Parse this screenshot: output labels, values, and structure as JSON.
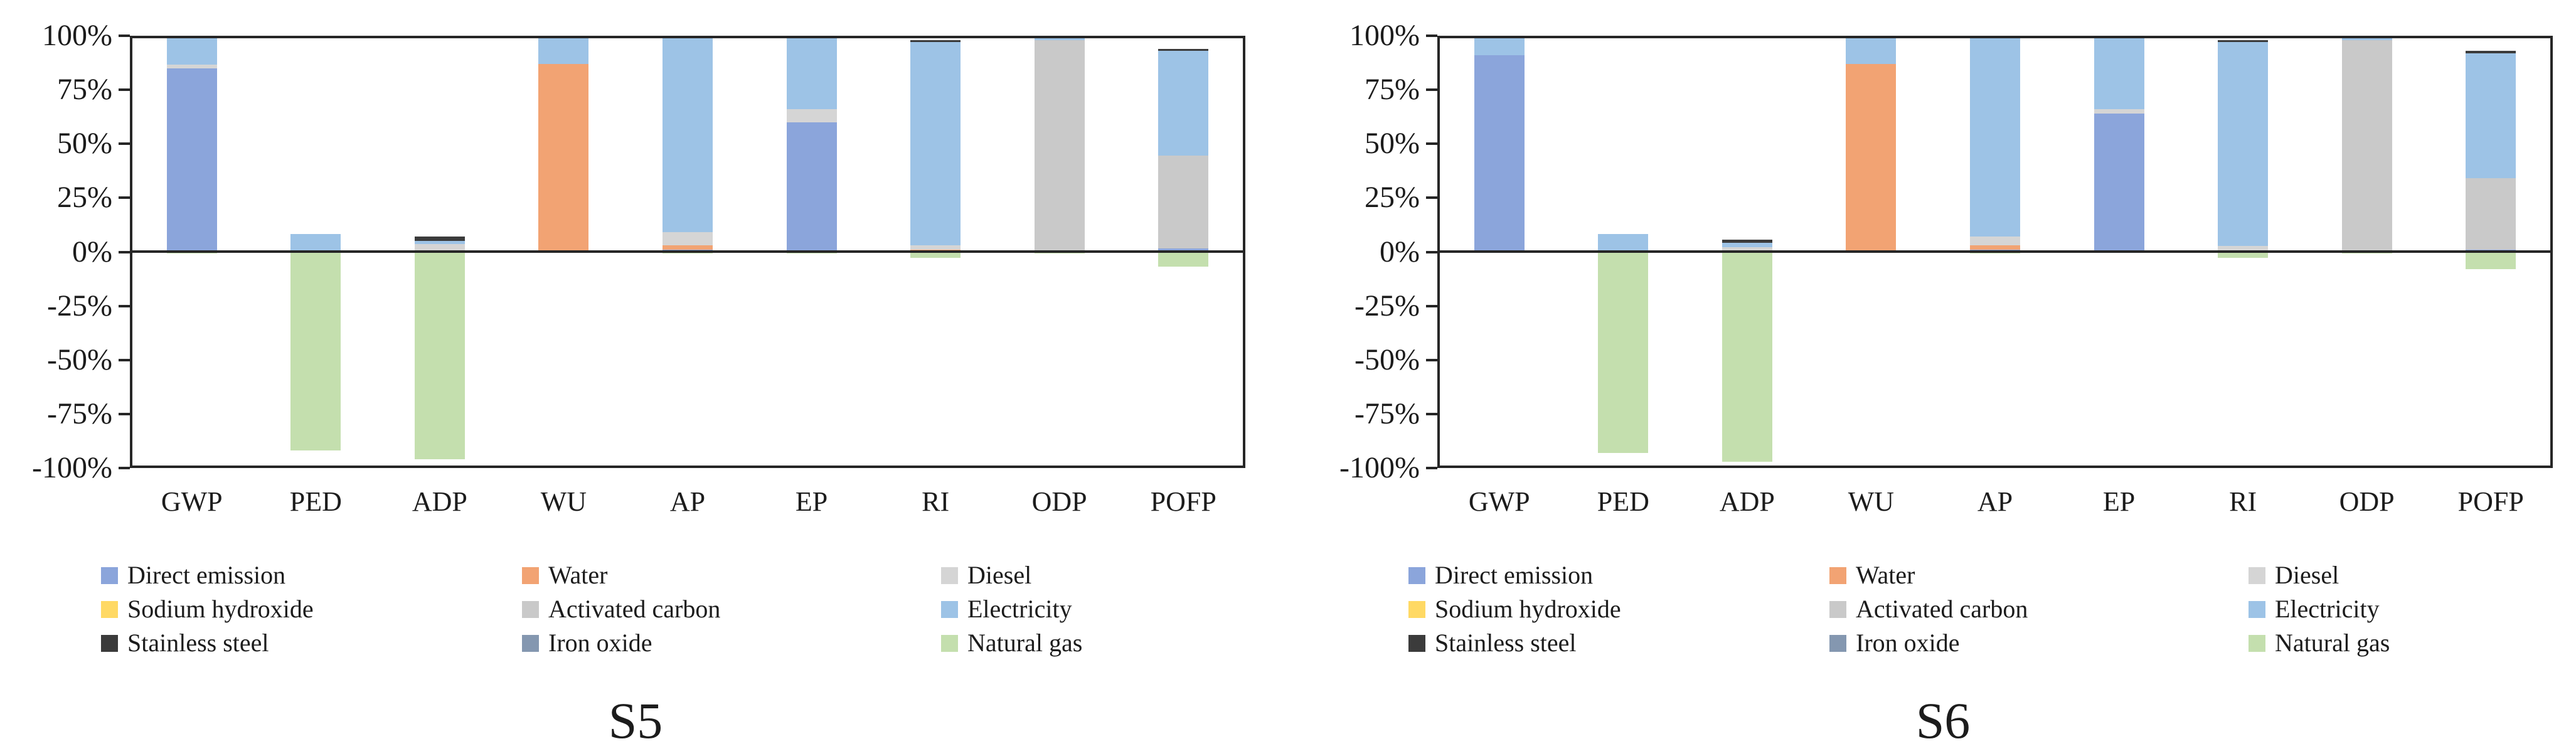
{
  "colors": {
    "frame": "#262626",
    "text": "#1c1c1c",
    "direct_emission": "#8BA5DB",
    "water": "#F2A373",
    "diesel": "#D5D5D5",
    "sodium_hydroxide": "#FFD964",
    "activated_carbon": "#C9C9C9",
    "electricity": "#9DC3E6",
    "stainless_steel": "#3B3B3B",
    "iron_oxide": "#8497B0",
    "natural_gas": "#C4DFAE"
  },
  "chart_data": [
    {
      "type": "bar",
      "stacked": true,
      "title": "S5",
      "categories": [
        "GWP",
        "PED",
        "ADP",
        "WU",
        "AP",
        "EP",
        "RI",
        "ODP",
        "POFP"
      ],
      "ylim": [
        -100,
        100
      ],
      "y_tick_labels": [
        "100%",
        "75%",
        "50%",
        "25%",
        "0%",
        "-25%",
        "-50%",
        "-75%",
        "-100%"
      ],
      "grid": false,
      "legend_position": "bottom",
      "series": [
        {
          "name": "Direct emission",
          "color_key": "direct_emission",
          "values": [
            85,
            0,
            0,
            0,
            1,
            60,
            0,
            0,
            1.5
          ]
        },
        {
          "name": "Water",
          "color_key": "water",
          "values": [
            0,
            0,
            0,
            87,
            2,
            0,
            1,
            0,
            0
          ]
        },
        {
          "name": "Diesel",
          "color_key": "diesel",
          "values": [
            1.5,
            0,
            3.5,
            0,
            6,
            6,
            2,
            0,
            0
          ]
        },
        {
          "name": "Sodium hydroxide",
          "color_key": "sodium_hydroxide",
          "values": [
            0,
            0,
            0,
            0,
            0,
            0,
            0,
            0,
            0
          ]
        },
        {
          "name": "Activated carbon",
          "color_key": "activated_carbon",
          "values": [
            0,
            0,
            0,
            0,
            0,
            0,
            0,
            98,
            43
          ]
        },
        {
          "name": "Electricity",
          "color_key": "electricity",
          "values": [
            12.5,
            8,
            1.5,
            13,
            90,
            34,
            94,
            2,
            48.5
          ]
        },
        {
          "name": "Stainless steel",
          "color_key": "stainless_steel",
          "values": [
            1,
            0,
            2,
            0,
            1,
            0,
            1,
            0,
            1
          ]
        },
        {
          "name": "Iron oxide",
          "color_key": "iron_oxide",
          "values": [
            0,
            0,
            0,
            0,
            0,
            0,
            0,
            0,
            0
          ]
        },
        {
          "name": "Natural gas",
          "color_key": "natural_gas",
          "values": [
            -1,
            -92,
            -96,
            0,
            -1,
            -1,
            -3,
            -1,
            -7
          ]
        }
      ],
      "legend_columns": [
        [
          "Direct emission",
          "Sodium hydroxide",
          "Stainless steel"
        ],
        [
          "Water",
          "Activated carbon",
          "Iron oxide"
        ],
        [
          "Diesel",
          "Electricity",
          "Natural gas"
        ]
      ]
    },
    {
      "type": "bar",
      "stacked": true,
      "title": "S6",
      "categories": [
        "GWP",
        "PED",
        "ADP",
        "WU",
        "AP",
        "EP",
        "RI",
        "ODP",
        "POFP"
      ],
      "ylim": [
        -100,
        100
      ],
      "y_tick_labels": [
        "100%",
        "75%",
        "50%",
        "25%",
        "0%",
        "-25%",
        "-50%",
        "-75%",
        "-100%"
      ],
      "grid": false,
      "legend_position": "bottom",
      "series": [
        {
          "name": "Direct emission",
          "color_key": "direct_emission",
          "values": [
            91,
            0,
            0,
            0,
            1,
            64,
            0,
            0,
            1
          ]
        },
        {
          "name": "Water",
          "color_key": "water",
          "values": [
            0,
            0,
            0,
            87,
            2,
            0,
            0,
            0,
            0
          ]
        },
        {
          "name": "Diesel",
          "color_key": "diesel",
          "values": [
            0,
            0,
            2,
            0,
            4,
            2,
            2.5,
            0,
            0
          ]
        },
        {
          "name": "Sodium hydroxide",
          "color_key": "sodium_hydroxide",
          "values": [
            0,
            0,
            0,
            0,
            0,
            0,
            0,
            0,
            0
          ]
        },
        {
          "name": "Activated carbon",
          "color_key": "activated_carbon",
          "values": [
            0,
            0,
            0,
            0,
            0,
            0,
            0,
            98,
            33
          ]
        },
        {
          "name": "Electricity",
          "color_key": "electricity",
          "values": [
            8,
            8,
            2,
            13,
            92,
            34,
            94.5,
            2,
            58
          ]
        },
        {
          "name": "Stainless steel",
          "color_key": "stainless_steel",
          "values": [
            1,
            0,
            1.5,
            0,
            1,
            0,
            1,
            0,
            1
          ]
        },
        {
          "name": "Iron oxide",
          "color_key": "iron_oxide",
          "values": [
            0,
            0,
            0,
            0,
            0,
            0,
            0,
            0,
            0
          ]
        },
        {
          "name": "Natural gas",
          "color_key": "natural_gas",
          "values": [
            0,
            -93,
            -97,
            0,
            -1,
            0,
            -3,
            -1,
            -8
          ]
        }
      ],
      "legend_columns": [
        [
          "Direct emission",
          "Sodium hydroxide",
          "Stainless steel"
        ],
        [
          "Water",
          "Activated carbon",
          "Iron oxide"
        ],
        [
          "Diesel",
          "Electricity",
          "Natural gas"
        ]
      ]
    }
  ]
}
